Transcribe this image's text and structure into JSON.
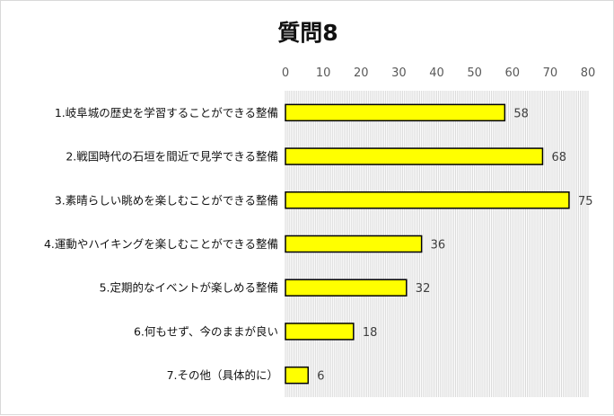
{
  "chart_data": {
    "type": "bar",
    "orientation": "horizontal",
    "title": "質問8",
    "categories": [
      "1.岐阜城の歴史を学習することができる整備",
      "2.戦国時代の石垣を間近で見学できる整備",
      "3.素晴らしい眺めを楽しむことができる整備",
      "4.運動やハイキングを楽しむことができる整備",
      "5.定期的なイベントが楽しめる整備",
      "6.何もせず、今のままが良い",
      "7.その他（具体的に）"
    ],
    "values": [
      58,
      68,
      75,
      36,
      32,
      18,
      6
    ],
    "xlim": [
      0,
      80
    ],
    "xticks": [
      0,
      10,
      20,
      30,
      40,
      50,
      60,
      70,
      80
    ],
    "xaxis_position": "top",
    "grid": true,
    "legend": "none",
    "colors": {
      "bar_fill": "#ffff00",
      "bar_stroke": "#000000",
      "grid": "#d9d9d9"
    }
  }
}
